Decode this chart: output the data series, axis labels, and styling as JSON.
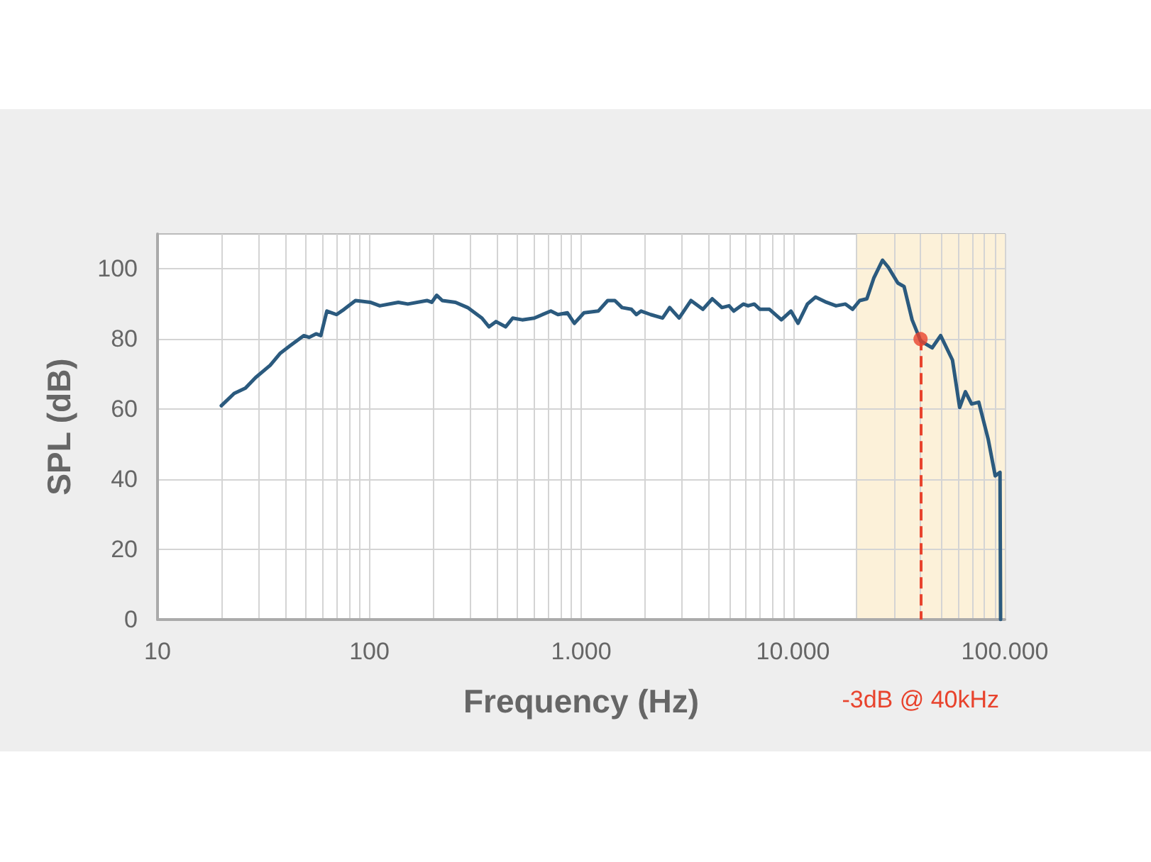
{
  "chart_data": {
    "type": "line",
    "xlabel": "Frequency (Hz)",
    "ylabel": "SPL (dB)",
    "log": "x",
    "xlim": [
      10,
      100000
    ],
    "ylim": [
      0,
      110
    ],
    "xticks": [
      {
        "value": 10,
        "label": "10"
      },
      {
        "value": 20,
        "label": null
      },
      {
        "value": 30,
        "label": null
      },
      {
        "value": 40,
        "label": null
      },
      {
        "value": 50,
        "label": null
      },
      {
        "value": 60,
        "label": null
      },
      {
        "value": 70,
        "label": null
      },
      {
        "value": 80,
        "label": null
      },
      {
        "value": 90,
        "label": null
      },
      {
        "value": 100,
        "label": "100"
      },
      {
        "value": 200,
        "label": null
      },
      {
        "value": 300,
        "label": null
      },
      {
        "value": 400,
        "label": null
      },
      {
        "value": 500,
        "label": null
      },
      {
        "value": 600,
        "label": null
      },
      {
        "value": 700,
        "label": null
      },
      {
        "value": 800,
        "label": null
      },
      {
        "value": 900,
        "label": null
      },
      {
        "value": 1000,
        "label": "1.000"
      },
      {
        "value": 2000,
        "label": null
      },
      {
        "value": 3000,
        "label": null
      },
      {
        "value": 4000,
        "label": null
      },
      {
        "value": 5000,
        "label": null
      },
      {
        "value": 6000,
        "label": null
      },
      {
        "value": 7000,
        "label": null
      },
      {
        "value": 8000,
        "label": null
      },
      {
        "value": 9000,
        "label": null
      },
      {
        "value": 10000,
        "label": "10.000"
      },
      {
        "value": 20000,
        "label": null
      },
      {
        "value": 30000,
        "label": null
      },
      {
        "value": 40000,
        "label": null
      },
      {
        "value": 50000,
        "label": null
      },
      {
        "value": 60000,
        "label": null
      },
      {
        "value": 70000,
        "label": null
      },
      {
        "value": 80000,
        "label": null
      },
      {
        "value": 90000,
        "label": null
      },
      {
        "value": 100000,
        "label": "100.000"
      }
    ],
    "yticks": [
      0,
      20,
      40,
      60,
      80,
      100
    ],
    "grid": true,
    "marker": "none",
    "line_style": "solid",
    "bands": [
      {
        "axis": "x",
        "from": 20000,
        "to": 100000,
        "color": "#fcf1d9"
      }
    ],
    "ref_lines": [
      {
        "axis": "x",
        "value": 40000,
        "label": "-3dB @ 40kHz",
        "color": "#e8432d",
        "line_style": "dashed"
      }
    ],
    "series": [
      {
        "color": "#2b5a7e",
        "x": [
          20,
          23,
          26,
          29,
          34,
          38,
          42,
          49,
          52,
          56,
          59,
          63,
          70,
          76,
          86,
          101,
          112,
          137,
          152,
          187,
          197,
          208,
          221,
          255,
          291,
          340,
          367,
          396,
          440,
          475,
          527,
          600,
          719,
          777,
          861,
          929,
          1031,
          1204,
          1334,
          1442,
          1559,
          1726,
          1822,
          1918,
          2128,
          2422,
          2617,
          2900,
          3300,
          3753,
          4159,
          4619,
          4990,
          5254,
          5826,
          6137,
          6563,
          6982,
          7742,
          8813,
          9777,
          10560,
          11700,
          12770,
          14390,
          15960,
          17690,
          19100,
          20650,
          22320,
          24100,
          26460,
          28180,
          31260,
          33440,
          36500,
          39430,
          40000,
          45370,
          49770,
          56620,
          61200,
          65150,
          69710,
          75340,
          83430,
          90090,
          94900,
          95500
        ],
        "values": [
          61,
          64.5,
          66,
          69,
          72.5,
          76,
          78,
          81,
          80.5,
          81.5,
          81,
          88,
          87,
          88.5,
          91,
          90.5,
          89.5,
          90.5,
          90,
          91,
          90.5,
          92.5,
          91,
          90.5,
          89,
          86,
          83.5,
          85,
          83.5,
          86,
          85.5,
          86,
          88,
          87,
          87.5,
          84.5,
          87.5,
          88,
          91,
          91,
          89,
          88.5,
          87,
          88,
          87,
          86,
          89,
          86,
          91,
          88.5,
          91.5,
          89,
          89.5,
          88,
          90,
          89.5,
          90,
          88.5,
          88.5,
          85.5,
          88,
          84.5,
          90,
          92,
          90.5,
          89.5,
          90,
          88.5,
          91,
          91.5,
          97.5,
          102.5,
          100.5,
          96,
          95,
          85.5,
          80.5,
          79.5,
          77.5,
          81,
          74,
          60.5,
          65,
          61.5,
          62,
          51.5,
          41,
          42,
          0
        ]
      },
      {
        "type": "scatter",
        "marker": "circle",
        "color": "#e8432d",
        "x": [
          40000
        ],
        "values": [
          80
        ]
      }
    ]
  }
}
